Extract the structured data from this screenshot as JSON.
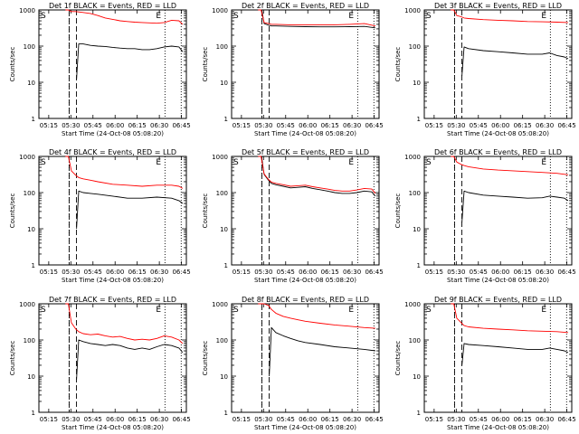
{
  "figure": {
    "start_time_label": "Start Time (24-Oct-08 05:08:20)",
    "ylabel": "Counts/sec",
    "x_tick_labels": [
      "05:15",
      "05:30",
      "05:45",
      "06:00",
      "06:15",
      "06:30",
      "06:45"
    ],
    "y_tick_labels": [
      "1",
      "10",
      "100",
      "1000"
    ],
    "marker_s": "S",
    "marker_e": "E",
    "colors": {
      "events": "#000000",
      "lld": "#ff0000",
      "axes": "#000000"
    }
  },
  "chart_data": [
    {
      "type": "line",
      "title": "Det 1f BLACK = Events, RED = LLD",
      "x_unit": "minutes since 05:08:20",
      "xlim": [
        0,
        100
      ],
      "ylim": [
        1,
        1000
      ],
      "y_scale": "log",
      "vlines_dashed": [
        20.5,
        25.5
      ],
      "vlines_dotted": [
        20.5,
        85.5,
        96.5
      ],
      "series": [
        {
          "name": "Events",
          "color": "#000000",
          "x": [
            25.5,
            27,
            30,
            35,
            40,
            45,
            50,
            55,
            60,
            65,
            70,
            75,
            80,
            85,
            90,
            95,
            97.5
          ],
          "values": [
            12,
            115,
            115,
            105,
            100,
            98,
            92,
            88,
            85,
            85,
            80,
            80,
            85,
            95,
            100,
            95,
            70
          ]
        },
        {
          "name": "LLD",
          "color": "#ff0000",
          "x": [
            18,
            20,
            22,
            25,
            27,
            30,
            35,
            40,
            45,
            50,
            55,
            60,
            65,
            70,
            75,
            80,
            85,
            90,
            95,
            97.5
          ],
          "values": [
            1000,
            1000,
            900,
            900,
            880,
            850,
            800,
            700,
            600,
            550,
            500,
            480,
            460,
            450,
            440,
            430,
            450,
            520,
            500,
            400
          ]
        }
      ]
    },
    {
      "type": "line",
      "title": "Det 2f BLACK = Events, RED = LLD",
      "x_unit": "minutes since 05:08:20",
      "xlim": [
        0,
        100
      ],
      "ylim": [
        1,
        1000
      ],
      "y_scale": "log",
      "vlines_dashed": [
        20.5,
        25.5
      ],
      "vlines_dotted": [
        20.5,
        85.5,
        96.5
      ],
      "series": [
        {
          "name": "Events",
          "color": "#000000",
          "x": [
            20.5,
            22,
            25,
            27,
            30,
            40,
            50,
            60,
            70,
            80,
            90,
            97.5
          ],
          "values": [
            1000,
            420,
            380,
            360,
            360,
            350,
            345,
            340,
            340,
            345,
            350,
            320
          ]
        },
        {
          "name": "LLD",
          "color": "#ff0000",
          "x": [
            18,
            20,
            22,
            25,
            27,
            30,
            40,
            50,
            60,
            70,
            80,
            90,
            97.5
          ],
          "values": [
            1000,
            1000,
            450,
            420,
            400,
            400,
            390,
            390,
            385,
            390,
            400,
            420,
            360
          ]
        }
      ]
    },
    {
      "type": "line",
      "title": "Det 3f BLACK = Events, RED = LLD",
      "x_unit": "minutes since 05:08:20",
      "xlim": [
        0,
        100
      ],
      "ylim": [
        1,
        1000
      ],
      "y_scale": "log",
      "vlines_dashed": [
        20.5,
        25.5
      ],
      "vlines_dotted": [
        20.5,
        85.5,
        96.5
      ],
      "series": [
        {
          "name": "Events",
          "color": "#000000",
          "x": [
            25.5,
            27,
            30,
            40,
            50,
            60,
            70,
            80,
            85,
            90,
            95,
            97.5
          ],
          "values": [
            15,
            95,
            85,
            75,
            70,
            65,
            60,
            60,
            65,
            55,
            50,
            45
          ]
        },
        {
          "name": "LLD",
          "color": "#ff0000",
          "x": [
            18,
            20,
            22,
            25,
            27,
            30,
            40,
            50,
            60,
            70,
            80,
            90,
            97.5
          ],
          "values": [
            1000,
            1000,
            700,
            650,
            600,
            580,
            540,
            520,
            500,
            480,
            470,
            460,
            450
          ]
        }
      ]
    },
    {
      "type": "line",
      "title": "Det 4f BLACK = Events, RED = LLD",
      "x_unit": "minutes since 05:08:20",
      "xlim": [
        0,
        100
      ],
      "ylim": [
        1,
        1000
      ],
      "y_scale": "log",
      "vlines_dashed": [
        20.5,
        25.5
      ],
      "vlines_dotted": [
        20.5,
        85.5,
        96.5
      ],
      "series": [
        {
          "name": "Events",
          "color": "#000000",
          "x": [
            25.5,
            27,
            30,
            35,
            40,
            50,
            60,
            70,
            80,
            90,
            95,
            97.5
          ],
          "values": [
            10,
            110,
            100,
            95,
            90,
            80,
            70,
            70,
            75,
            70,
            60,
            50
          ]
        },
        {
          "name": "LLD",
          "color": "#ff0000",
          "x": [
            18,
            20,
            22,
            25,
            27,
            30,
            35,
            40,
            50,
            60,
            70,
            80,
            90,
            95,
            97.5
          ],
          "values": [
            1000,
            1000,
            400,
            300,
            260,
            240,
            220,
            200,
            170,
            160,
            150,
            160,
            160,
            150,
            130
          ]
        }
      ]
    },
    {
      "type": "line",
      "title": "Det 5f BLACK = Events, RED = LLD",
      "x_unit": "minutes since 05:08:20",
      "xlim": [
        0,
        100
      ],
      "ylim": [
        1,
        1000
      ],
      "y_scale": "log",
      "vlines_dashed": [
        20.5,
        25.5
      ],
      "vlines_dotted": [
        20.5,
        85.5,
        96.5
      ],
      "series": [
        {
          "name": "Events",
          "color": "#000000",
          "x": [
            20.5,
            22,
            25,
            27,
            30,
            35,
            40,
            45,
            50,
            55,
            60,
            65,
            70,
            75,
            80,
            85,
            90,
            95,
            97.5
          ],
          "values": [
            900,
            320,
            220,
            180,
            165,
            150,
            135,
            140,
            145,
            130,
            120,
            110,
            100,
            95,
            95,
            100,
            110,
            105,
            80
          ]
        },
        {
          "name": "LLD",
          "color": "#ff0000",
          "x": [
            18,
            20,
            22,
            25,
            27,
            30,
            35,
            40,
            45,
            50,
            55,
            60,
            65,
            70,
            75,
            80,
            85,
            90,
            95,
            97.5
          ],
          "values": [
            1000,
            1000,
            330,
            230,
            195,
            180,
            165,
            150,
            155,
            160,
            145,
            135,
            125,
            115,
            110,
            110,
            118,
            130,
            125,
            95
          ]
        }
      ]
    },
    {
      "type": "line",
      "title": "Det 6f BLACK = Events, RED = LLD",
      "x_unit": "minutes since 05:08:20",
      "xlim": [
        0,
        100
      ],
      "ylim": [
        1,
        1000
      ],
      "y_scale": "log",
      "vlines_dashed": [
        20.5,
        25.5
      ],
      "vlines_dotted": [
        20.5,
        85.5,
        96.5
      ],
      "series": [
        {
          "name": "Events",
          "color": "#000000",
          "x": [
            25.5,
            27,
            30,
            40,
            50,
            60,
            70,
            80,
            85,
            90,
            95,
            97.5
          ],
          "values": [
            15,
            110,
            100,
            85,
            80,
            75,
            70,
            72,
            80,
            75,
            70,
            60
          ]
        },
        {
          "name": "LLD",
          "color": "#ff0000",
          "x": [
            18,
            20,
            22,
            25,
            27,
            30,
            40,
            50,
            60,
            70,
            80,
            90,
            97.5
          ],
          "values": [
            1000,
            1000,
            700,
            600,
            560,
            520,
            450,
            420,
            400,
            380,
            360,
            340,
            310
          ]
        }
      ]
    },
    {
      "type": "line",
      "title": "Det 7f BLACK = Events, RED = LLD",
      "x_unit": "minutes since 05:08:20",
      "xlim": [
        0,
        100
      ],
      "ylim": [
        1,
        1000
      ],
      "y_scale": "log",
      "vlines_dashed": [
        20.5,
        25.5
      ],
      "vlines_dotted": [
        20.5,
        85.5,
        96.5
      ],
      "series": [
        {
          "name": "Events",
          "color": "#000000",
          "x": [
            25.5,
            27,
            30,
            35,
            40,
            45,
            50,
            55,
            60,
            65,
            70,
            75,
            80,
            85,
            90,
            95,
            97.5
          ],
          "values": [
            8,
            100,
            90,
            80,
            75,
            70,
            75,
            70,
            60,
            55,
            60,
            55,
            65,
            75,
            70,
            60,
            45
          ]
        },
        {
          "name": "LLD",
          "color": "#ff0000",
          "x": [
            18,
            20,
            22,
            25,
            27,
            30,
            35,
            40,
            45,
            50,
            55,
            60,
            65,
            70,
            75,
            80,
            85,
            90,
            95,
            97.5
          ],
          "values": [
            1000,
            1000,
            300,
            200,
            170,
            150,
            140,
            145,
            130,
            120,
            125,
            110,
            100,
            105,
            100,
            110,
            130,
            120,
            100,
            80
          ]
        }
      ]
    },
    {
      "type": "line",
      "title": "Det 8f BLACK = Events, RED = LLD",
      "x_unit": "minutes since 05:08:20",
      "xlim": [
        0,
        100
      ],
      "ylim": [
        1,
        1000
      ],
      "y_scale": "log",
      "vlines_dashed": [
        20.5,
        25.5
      ],
      "vlines_dotted": [
        20.5,
        85.5,
        96.5
      ],
      "series": [
        {
          "name": "Events",
          "color": "#000000",
          "x": [
            25.5,
            27,
            30,
            35,
            40,
            45,
            50,
            60,
            70,
            80,
            90,
            97.5
          ],
          "values": [
            10,
            220,
            160,
            130,
            110,
            95,
            85,
            75,
            65,
            60,
            55,
            50
          ]
        },
        {
          "name": "LLD",
          "color": "#ff0000",
          "x": [
            18,
            20,
            22,
            25,
            27,
            30,
            35,
            40,
            45,
            50,
            60,
            70,
            80,
            90,
            97.5
          ],
          "values": [
            1000,
            1000,
            1000,
            900,
            700,
            550,
            450,
            400,
            360,
            330,
            290,
            260,
            240,
            220,
            210
          ]
        }
      ]
    },
    {
      "type": "line",
      "title": "Det 9f BLACK = Events, RED = LLD",
      "x_unit": "minutes since 05:08:20",
      "xlim": [
        0,
        100
      ],
      "ylim": [
        1,
        1000
      ],
      "y_scale": "log",
      "vlines_dashed": [
        20.5,
        25.5
      ],
      "vlines_dotted": [
        20.5,
        85.5,
        96.5
      ],
      "series": [
        {
          "name": "Events",
          "color": "#000000",
          "x": [
            25.5,
            27,
            30,
            40,
            50,
            60,
            70,
            80,
            85,
            90,
            95,
            97.5
          ],
          "values": [
            20,
            80,
            75,
            70,
            65,
            60,
            55,
            55,
            60,
            55,
            50,
            45
          ]
        },
        {
          "name": "LLD",
          "color": "#ff0000",
          "x": [
            18,
            20,
            22,
            25,
            27,
            30,
            40,
            50,
            60,
            70,
            80,
            90,
            97.5
          ],
          "values": [
            1000,
            1000,
            400,
            300,
            250,
            230,
            210,
            200,
            190,
            180,
            175,
            170,
            160
          ]
        }
      ]
    }
  ]
}
